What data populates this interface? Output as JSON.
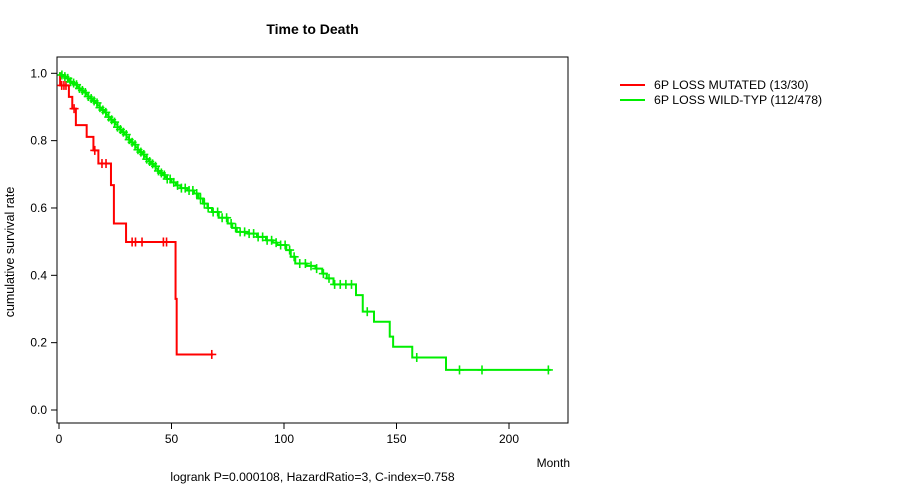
{
  "chart_data": {
    "type": "line",
    "subtype": "kaplan-meier-step",
    "title": "Time to Death",
    "xlabel": "Month",
    "ylabel": "cumulative survival rate",
    "caption": "logrank P=0.000108, HazardRatio=3, C-index=0.758",
    "x_ticks": [
      "0",
      "50",
      "100",
      "150",
      "200"
    ],
    "y_ticks": [
      "0.0",
      "0.2",
      "0.4",
      "0.6",
      "0.8",
      "1.0"
    ],
    "xlim": [
      0,
      226
    ],
    "ylim": [
      0,
      1
    ],
    "grid": false,
    "legend_position": "right-outside",
    "series": [
      {
        "name": "6P LOSS MUTATED (13/30)",
        "color": "#FF0000",
        "points": [
          [
            0,
            1.0
          ],
          [
            0.5,
            0.964
          ],
          [
            4.4,
            0.93
          ],
          [
            5.9,
            0.895
          ],
          [
            7.5,
            0.846
          ],
          [
            12.3,
            0.811
          ],
          [
            15.3,
            0.771
          ],
          [
            17.5,
            0.732
          ],
          [
            23.1,
            0.668
          ],
          [
            24.4,
            0.554
          ],
          [
            29.8,
            0.499
          ],
          [
            51.8,
            0.33
          ],
          [
            52.3,
            0.165
          ]
        ],
        "censors": [
          1.2,
          2.2,
          3.1,
          6.7,
          15.9,
          19.1,
          20.9,
          32.5,
          34.0,
          36.9,
          46.4,
          47.8,
          67.9
        ],
        "end_month": 68.5
      },
      {
        "name": "6P LOSS WILD-TYP (112/478)",
        "color": "#00EE00",
        "points": [
          [
            0,
            1.0
          ],
          [
            1,
            0.995
          ],
          [
            2,
            0.99
          ],
          [
            3,
            0.985
          ],
          [
            4,
            0.98
          ],
          [
            5,
            0.975
          ],
          [
            6,
            0.971
          ],
          [
            7,
            0.966
          ],
          [
            8,
            0.96
          ],
          [
            9,
            0.955
          ],
          [
            10,
            0.949
          ],
          [
            11,
            0.943
          ],
          [
            12,
            0.937
          ],
          [
            13,
            0.931
          ],
          [
            14,
            0.925
          ],
          [
            15,
            0.918
          ],
          [
            16,
            0.912
          ],
          [
            17,
            0.905
          ],
          [
            18,
            0.898
          ],
          [
            19,
            0.891
          ],
          [
            20,
            0.884
          ],
          [
            21,
            0.877
          ],
          [
            22,
            0.87
          ],
          [
            23,
            0.862
          ],
          [
            24,
            0.855
          ],
          [
            25,
            0.848
          ],
          [
            26,
            0.84
          ],
          [
            27,
            0.833
          ],
          [
            28,
            0.825
          ],
          [
            29,
            0.818
          ],
          [
            30,
            0.81
          ],
          [
            31,
            0.803
          ],
          [
            32,
            0.795
          ],
          [
            33,
            0.788
          ],
          [
            34,
            0.78
          ],
          [
            35,
            0.773
          ],
          [
            36,
            0.766
          ],
          [
            37,
            0.759
          ],
          [
            38,
            0.752
          ],
          [
            39,
            0.745
          ],
          [
            40,
            0.738
          ],
          [
            41,
            0.731
          ],
          [
            42,
            0.724
          ],
          [
            43,
            0.717
          ],
          [
            44,
            0.71
          ],
          [
            45,
            0.704
          ],
          [
            46,
            0.698
          ],
          [
            47,
            0.692
          ],
          [
            48,
            0.686
          ],
          [
            50,
            0.676
          ],
          [
            52,
            0.667
          ],
          [
            54,
            0.659
          ],
          [
            57,
            0.652
          ],
          [
            60,
            0.643
          ],
          [
            62,
            0.628
          ],
          [
            64,
            0.613
          ],
          [
            66,
            0.6
          ],
          [
            68,
            0.588
          ],
          [
            71,
            0.571
          ],
          [
            75,
            0.554
          ],
          [
            77,
            0.541
          ],
          [
            79,
            0.529
          ],
          [
            84,
            0.524
          ],
          [
            88,
            0.514
          ],
          [
            92,
            0.504
          ],
          [
            95,
            0.497
          ],
          [
            97,
            0.49
          ],
          [
            101,
            0.475
          ],
          [
            103,
            0.455
          ],
          [
            105,
            0.435
          ],
          [
            110,
            0.428
          ],
          [
            114,
            0.42
          ],
          [
            117,
            0.405
          ],
          [
            119,
            0.391
          ],
          [
            122,
            0.373
          ],
          [
            132,
            0.341
          ],
          [
            135,
            0.292
          ],
          [
            140,
            0.262
          ],
          [
            147,
            0.218
          ],
          [
            148.5,
            0.188
          ],
          [
            157,
            0.156
          ],
          [
            172,
            0.119
          ]
        ],
        "censors": [
          1.3,
          2.6,
          3.9,
          5.2,
          6.5,
          7.8,
          9.1,
          10.4,
          11.7,
          13,
          14.3,
          15.6,
          16.9,
          18.2,
          19.5,
          20.8,
          22.1,
          23.4,
          24.7,
          26,
          27.3,
          28.6,
          29.9,
          31.2,
          32.5,
          33.8,
          35.1,
          36.4,
          37.7,
          39,
          40.3,
          41.6,
          42.9,
          44.2,
          45.5,
          46.8,
          48.1,
          49.4,
          51,
          52.7,
          54.4,
          56.1,
          57.8,
          59.5,
          61.2,
          62.9,
          64.6,
          66.3,
          68.5,
          70.5,
          72.5,
          74.5,
          76.5,
          78.5,
          80.5,
          82.5,
          84.5,
          86.5,
          88.5,
          90.5,
          92.5,
          94.5,
          96.5,
          98.5,
          100.5,
          102.5,
          104.5,
          107,
          109.5,
          112,
          114.5,
          117.5,
          120,
          122.5,
          125,
          127.5,
          130,
          137,
          159,
          178,
          188,
          217.5
        ],
        "end_month": 218.5
      }
    ]
  }
}
